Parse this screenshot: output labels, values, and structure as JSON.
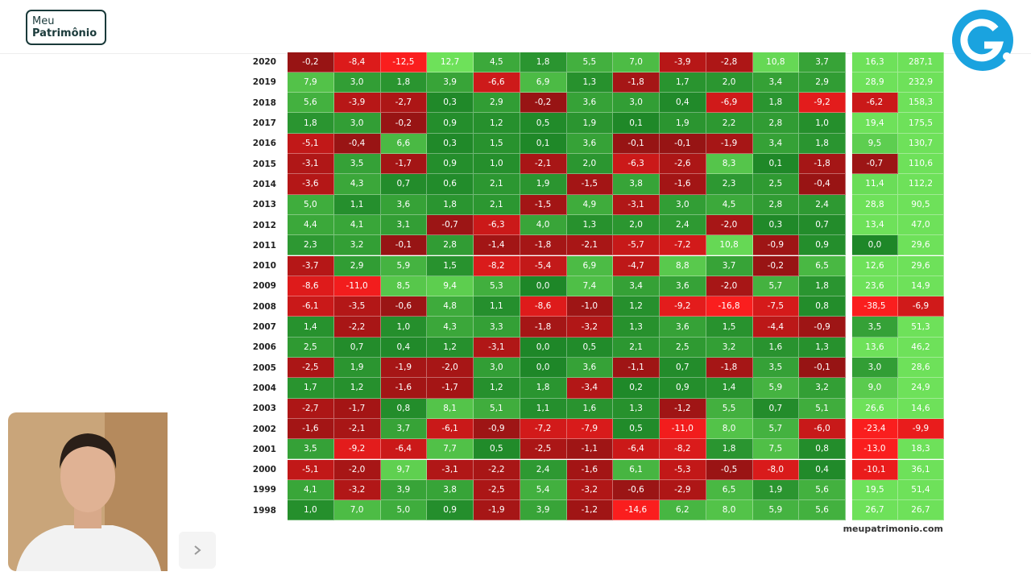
{
  "header": {
    "logo_line1": "Meu",
    "logo_line2": "Patrimônio"
  },
  "table": {
    "rows": [
      {
        "year": "2020",
        "cells": [
          "-0,2",
          "-8,4",
          "-12,5",
          "12,7",
          "4,5",
          "1,8",
          "5,5",
          "7,0",
          "-3,9",
          "-2,8",
          "10,8",
          "3,7"
        ],
        "totals": [
          "16,3",
          "287,1"
        ]
      },
      {
        "year": "2019",
        "cells": [
          "7,9",
          "3,0",
          "1,8",
          "3,9",
          "-6,6",
          "6,9",
          "1,3",
          "-1,8",
          "1,7",
          "2,0",
          "3,4",
          "2,9"
        ],
        "totals": [
          "28,9",
          "232,9"
        ]
      },
      {
        "year": "2018",
        "cells": [
          "5,6",
          "-3,9",
          "-2,7",
          "0,3",
          "2,9",
          "-0,2",
          "3,6",
          "3,0",
          "0,4",
          "-6,9",
          "1,8",
          "-9,2"
        ],
        "totals": [
          "-6,2",
          "158,3"
        ]
      },
      {
        "year": "2017",
        "cells": [
          "1,8",
          "3,0",
          "-0,2",
          "0,9",
          "1,2",
          "0,5",
          "1,9",
          "0,1",
          "1,9",
          "2,2",
          "2,8",
          "1,0"
        ],
        "totals": [
          "19,4",
          "175,5"
        ]
      },
      {
        "year": "2016",
        "cells": [
          "-5,1",
          "-0,4",
          "6,6",
          "0,3",
          "1,5",
          "0,1",
          "3,6",
          "-0,1",
          "-0,1",
          "-1,9",
          "3,4",
          "1,8"
        ],
        "totals": [
          "9,5",
          "130,7"
        ]
      },
      {
        "year": "2015",
        "cells": [
          "-3,1",
          "3,5",
          "-1,7",
          "0,9",
          "1,0",
          "-2,1",
          "2,0",
          "-6,3",
          "-2,6",
          "8,3",
          "0,1",
          "-1,8"
        ],
        "totals": [
          "-0,7",
          "110,6"
        ]
      },
      {
        "year": "2014",
        "cells": [
          "-3,6",
          "4,3",
          "0,7",
          "0,6",
          "2,1",
          "1,9",
          "-1,5",
          "3,8",
          "-1,6",
          "2,3",
          "2,5",
          "-0,4"
        ],
        "totals": [
          "11,4",
          "112,2"
        ]
      },
      {
        "year": "2013",
        "cells": [
          "5,0",
          "1,1",
          "3,6",
          "1,8",
          "2,1",
          "-1,5",
          "4,9",
          "-3,1",
          "3,0",
          "4,5",
          "2,8",
          "2,4"
        ],
        "totals": [
          "28,8",
          "90,5"
        ]
      },
      {
        "year": "2012",
        "cells": [
          "4,4",
          "4,1",
          "3,1",
          "-0,7",
          "-6,3",
          "4,0",
          "1,3",
          "2,0",
          "2,4",
          "-2,0",
          "0,3",
          "0,7"
        ],
        "totals": [
          "13,4",
          "47,0"
        ]
      },
      {
        "year": "2011",
        "cells": [
          "2,3",
          "3,2",
          "-0,1",
          "2,8",
          "-1,4",
          "-1,8",
          "-2,1",
          "-5,7",
          "-7,2",
          "10,8",
          "-0,9",
          "0,9"
        ],
        "totals": [
          "0,0",
          "29,6"
        ]
      },
      {
        "year": "2010",
        "cells": [
          "-3,7",
          "2,9",
          "5,9",
          "1,5",
          "-8,2",
          "-5,4",
          "6,9",
          "-4,7",
          "8,8",
          "3,7",
          "-0,2",
          "6,5"
        ],
        "totals": [
          "12,6",
          "29,6"
        ]
      },
      {
        "year": "2009",
        "cells": [
          "-8,6",
          "-11,0",
          "8,5",
          "9,4",
          "5,3",
          "0,0",
          "7,4",
          "3,4",
          "3,6",
          "-2,0",
          "5,7",
          "1,8"
        ],
        "totals": [
          "23,6",
          "14,9"
        ]
      },
      {
        "year": "2008",
        "cells": [
          "-6,1",
          "-3,5",
          "-0,6",
          "4,8",
          "1,1",
          "-8,6",
          "-1,0",
          "1,2",
          "-9,2",
          "-16,8",
          "-7,5",
          "0,8"
        ],
        "totals": [
          "-38,5",
          "-6,9"
        ]
      },
      {
        "year": "2007",
        "cells": [
          "1,4",
          "-2,2",
          "1,0",
          "4,3",
          "3,3",
          "-1,8",
          "-3,2",
          "1,3",
          "3,6",
          "1,5",
          "-4,4",
          "-0,9"
        ],
        "totals": [
          "3,5",
          "51,3"
        ]
      },
      {
        "year": "2006",
        "cells": [
          "2,5",
          "0,7",
          "0,4",
          "1,2",
          "-3,1",
          "0,0",
          "0,5",
          "2,1",
          "2,5",
          "3,2",
          "1,6",
          "1,3"
        ],
        "totals": [
          "13,6",
          "46,2"
        ]
      },
      {
        "year": "2005",
        "cells": [
          "-2,5",
          "1,9",
          "-1,9",
          "-2,0",
          "3,0",
          "0,0",
          "3,6",
          "-1,1",
          "0,7",
          "-1,8",
          "3,5",
          "-0,1"
        ],
        "totals": [
          "3,0",
          "28,6"
        ]
      },
      {
        "year": "2004",
        "cells": [
          "1,7",
          "1,2",
          "-1,6",
          "-1,7",
          "1,2",
          "1,8",
          "-3,4",
          "0,2",
          "0,9",
          "1,4",
          "5,9",
          "3,2"
        ],
        "totals": [
          "9,0",
          "24,9"
        ]
      },
      {
        "year": "2003",
        "cells": [
          "-2,7",
          "-1,7",
          "0,8",
          "8,1",
          "5,1",
          "1,1",
          "1,6",
          "1,3",
          "-1,2",
          "5,5",
          "0,7",
          "5,1"
        ],
        "totals": [
          "26,6",
          "14,6"
        ]
      },
      {
        "year": "2002",
        "cells": [
          "-1,6",
          "-2,1",
          "3,7",
          "-6,1",
          "-0,9",
          "-7,2",
          "-7,9",
          "0,5",
          "-11,0",
          "8,0",
          "5,7",
          "-6,0"
        ],
        "totals": [
          "-23,4",
          "-9,9"
        ]
      },
      {
        "year": "2001",
        "cells": [
          "3,5",
          "-9,2",
          "-6,4",
          "7,7",
          "0,5",
          "-2,5",
          "-1,1",
          "-6,4",
          "-8,2",
          "1,8",
          "7,5",
          "0,8"
        ],
        "totals": [
          "-13,0",
          "18,3"
        ]
      },
      {
        "year": "2000",
        "cells": [
          "-5,1",
          "-2,0",
          "9,7",
          "-3,1",
          "-2,2",
          "2,4",
          "-1,6",
          "6,1",
          "-5,3",
          "-0,5",
          "-8,0",
          "0,4"
        ],
        "totals": [
          "-10,1",
          "36,1"
        ]
      },
      {
        "year": "1999",
        "cells": [
          "4,1",
          "-3,2",
          "3,9",
          "3,8",
          "-2,5",
          "5,4",
          "-3,2",
          "-0,6",
          "-2,9",
          "6,5",
          "1,9",
          "5,6"
        ],
        "totals": [
          "19,5",
          "51,4"
        ]
      },
      {
        "year": "1998",
        "cells": [
          "1,0",
          "7,0",
          "5,0",
          "0,9",
          "-1,9",
          "3,9",
          "-1,2",
          "-14,6",
          "6,2",
          "8,0",
          "5,9",
          "5,6"
        ],
        "totals": [
          "26,7",
          "26,7"
        ]
      }
    ]
  },
  "footer": {
    "site": "meupatrimonio.com"
  }
}
